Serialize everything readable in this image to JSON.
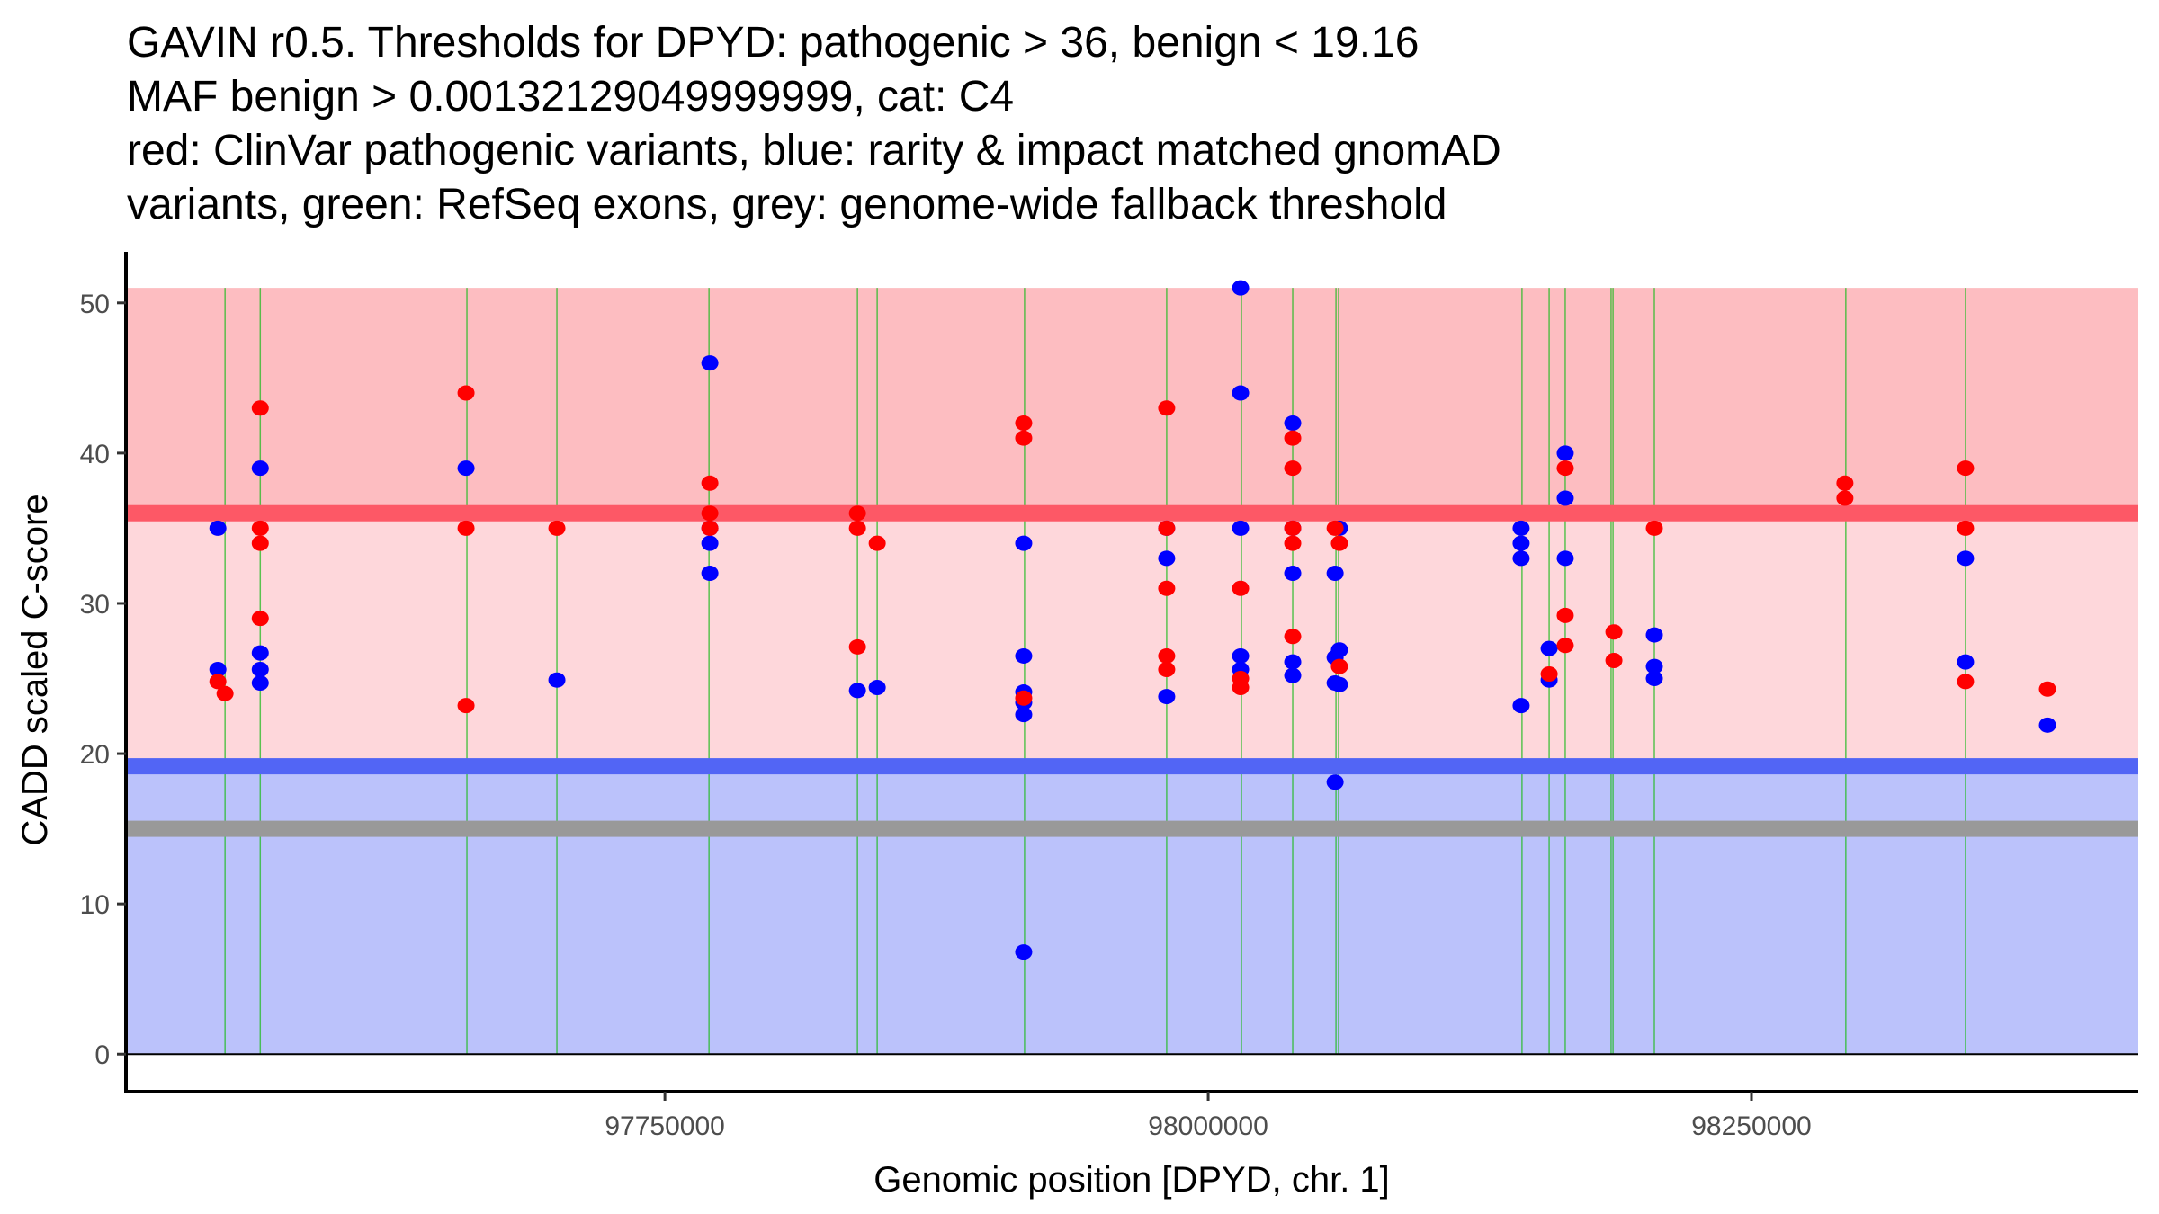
{
  "chart_data": {
    "type": "scatter",
    "title_lines": [
      "GAVIN r0.5. Thresholds for DPYD: pathogenic > 36, benign < 19.16",
      "MAF benign > 0.00132129049999999, cat: C4",
      "red: ClinVar pathogenic variants, blue: rarity & impact matched gnomAD",
      "variants, green: RefSeq exons, grey: genome-wide fallback threshold"
    ],
    "xlabel": "Genomic position [DPYD, chr. 1]",
    "ylabel": "CADD scaled C-score",
    "xlim": [
      97502000,
      98428000
    ],
    "ylim": [
      -2.5,
      53.4
    ],
    "x_ticks": [
      97750000,
      98000000,
      98250000
    ],
    "x_tick_labels": [
      "97750000",
      "98000000",
      "98250000"
    ],
    "y_ticks": [
      0,
      10,
      20,
      30,
      40,
      50
    ],
    "y_tick_labels": [
      "0",
      "10",
      "20",
      "30",
      "40",
      "50"
    ],
    "grid": false,
    "thresholds": {
      "pathogenic": 36,
      "benign": 19.16,
      "genome_wide_fallback": 15,
      "region_max": 51,
      "region_min": 0
    },
    "colors": {
      "pathogenic_region": "#FDBDC1",
      "pathogenic_line": "#FD5866",
      "vus_region": "#FED7DB",
      "benign_line": "#5265F5",
      "benign_region": "#BBC2FB",
      "fallback_line": "#999999",
      "clinvar_point": "#FF0000",
      "gnomad_point": "#0000FF",
      "exon_line": "#22BB22"
    },
    "exons": [
      97547600,
      97563800,
      97658900,
      97700300,
      97770300,
      97838600,
      97847700,
      97915500,
      97980900,
      98015300,
      98038900,
      98058800,
      98060000,
      98144400,
      98156900,
      98164300,
      98185400,
      98186300,
      98205300,
      98293400,
      98348500
    ],
    "series": [
      {
        "name": "ClinVar pathogenic variants",
        "color": "red",
        "points": [
          [
            97544300,
            24.8
          ],
          [
            97547600,
            24.0
          ],
          [
            97563800,
            43
          ],
          [
            97563800,
            35
          ],
          [
            97563800,
            34
          ],
          [
            97563800,
            29
          ],
          [
            97658500,
            44
          ],
          [
            97658500,
            35
          ],
          [
            97658500,
            23.2
          ],
          [
            97700300,
            35
          ],
          [
            97770700,
            38
          ],
          [
            97770700,
            36
          ],
          [
            97770700,
            35
          ],
          [
            97838600,
            36
          ],
          [
            97838600,
            35
          ],
          [
            97838600,
            27.1
          ],
          [
            97847700,
            34
          ],
          [
            97915100,
            42
          ],
          [
            97915100,
            41
          ],
          [
            97915100,
            23.7
          ],
          [
            97980900,
            43
          ],
          [
            97980900,
            35
          ],
          [
            97980900,
            31
          ],
          [
            97980900,
            26.5
          ],
          [
            97980900,
            25.6
          ],
          [
            98014900,
            31
          ],
          [
            98014900,
            25.0
          ],
          [
            98014900,
            24.4
          ],
          [
            98038900,
            41
          ],
          [
            98038900,
            39
          ],
          [
            98038900,
            35
          ],
          [
            98038900,
            34
          ],
          [
            98038900,
            27.8
          ],
          [
            98058400,
            35
          ],
          [
            98060400,
            34
          ],
          [
            98060400,
            25.8
          ],
          [
            98156900,
            25.3
          ],
          [
            98164300,
            39
          ],
          [
            98164300,
            29.2
          ],
          [
            98164300,
            27.2
          ],
          [
            98186700,
            28.1
          ],
          [
            98186700,
            26.2
          ],
          [
            98205300,
            35
          ],
          [
            98293000,
            38
          ],
          [
            98293000,
            37
          ],
          [
            98348500,
            39
          ],
          [
            98348500,
            35
          ],
          [
            98348500,
            24.8
          ],
          [
            98386200,
            24.3
          ]
        ]
      },
      {
        "name": "rarity & impact matched gnomAD variants",
        "color": "blue",
        "points": [
          [
            97544300,
            35
          ],
          [
            97544300,
            25.6
          ],
          [
            97563800,
            39
          ],
          [
            97563800,
            26.7
          ],
          [
            97563800,
            25.6
          ],
          [
            97563800,
            24.7
          ],
          [
            97658500,
            39
          ],
          [
            97700300,
            24.9
          ],
          [
            97770700,
            46
          ],
          [
            97770700,
            35
          ],
          [
            97770700,
            34
          ],
          [
            97770700,
            32
          ],
          [
            97838600,
            24.2
          ],
          [
            97847700,
            24.4
          ],
          [
            97915100,
            34
          ],
          [
            97915100,
            26.5
          ],
          [
            97915100,
            24.1
          ],
          [
            97915100,
            23.4
          ],
          [
            97915100,
            22.6
          ],
          [
            97915100,
            6.8
          ],
          [
            97980900,
            35
          ],
          [
            97980900,
            33
          ],
          [
            97980900,
            23.8
          ],
          [
            98014900,
            51
          ],
          [
            98014900,
            44
          ],
          [
            98014900,
            35
          ],
          [
            98014900,
            26.5
          ],
          [
            98014900,
            25.6
          ],
          [
            98038900,
            42
          ],
          [
            98038900,
            35
          ],
          [
            98038900,
            32
          ],
          [
            98038900,
            26.1
          ],
          [
            98038900,
            25.2
          ],
          [
            98058400,
            32
          ],
          [
            98058400,
            26.4
          ],
          [
            98058400,
            24.7
          ],
          [
            98058400,
            18.1
          ],
          [
            98060400,
            35
          ],
          [
            98060400,
            26.9
          ],
          [
            98060400,
            24.6
          ],
          [
            98144000,
            35
          ],
          [
            98144000,
            34
          ],
          [
            98144000,
            33
          ],
          [
            98144000,
            23.2
          ],
          [
            98156900,
            27.0
          ],
          [
            98156900,
            24.9
          ],
          [
            98164300,
            40
          ],
          [
            98164300,
            37
          ],
          [
            98164300,
            33
          ],
          [
            98205300,
            27.9
          ],
          [
            98205300,
            25.8
          ],
          [
            98205300,
            25.0
          ],
          [
            98348500,
            33
          ],
          [
            98348500,
            26.1
          ],
          [
            98386200,
            21.9
          ]
        ]
      }
    ]
  }
}
